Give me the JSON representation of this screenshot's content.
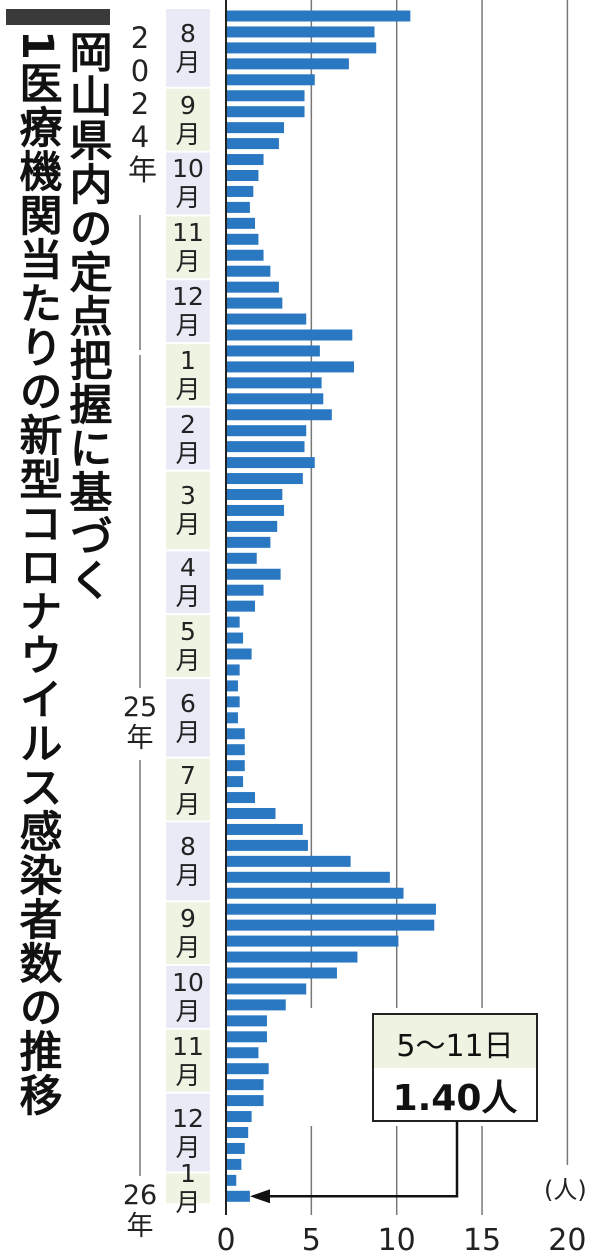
{
  "title_lines": [
    "岡山県内の定点把握に基づく",
    "1医療機関当たりの新型コロナウイルス感染者数の推移"
  ],
  "chart_data": {
    "type": "bar",
    "orientation": "horizontal",
    "title": "岡山県内の定点把握に基づく1医療機関当たりの新型コロナウイルス感染者数の推移",
    "xlabel": "",
    "unit_label": "(人)",
    "xlim": [
      0,
      20
    ],
    "xticks": [
      "0",
      "5",
      "10",
      "15",
      "20"
    ],
    "grid": true,
    "bar_color": "#2a78c2",
    "years": [
      {
        "label": "2024年",
        "month_index": 0
      },
      {
        "label": "25年",
        "month_index": 5
      },
      {
        "label": "26年",
        "month_index": 17
      }
    ],
    "months": [
      {
        "label": "8月",
        "weeks": 5
      },
      {
        "label": "9月",
        "weeks": 4
      },
      {
        "label": "10月",
        "weeks": 4
      },
      {
        "label": "11月",
        "weeks": 4
      },
      {
        "label": "12月",
        "weeks": 4
      },
      {
        "label": "1月",
        "weeks": 4
      },
      {
        "label": "2月",
        "weeks": 4
      },
      {
        "label": "3月",
        "weeks": 5
      },
      {
        "label": "4月",
        "weeks": 4
      },
      {
        "label": "5月",
        "weeks": 4
      },
      {
        "label": "6月",
        "weeks": 5
      },
      {
        "label": "7月",
        "weeks": 4
      },
      {
        "label": "8月",
        "weeks": 5
      },
      {
        "label": "9月",
        "weeks": 4
      },
      {
        "label": "10月",
        "weeks": 4
      },
      {
        "label": "11月",
        "weeks": 4
      },
      {
        "label": "12月",
        "weeks": 5
      },
      {
        "label": "1月",
        "weeks": 2
      }
    ],
    "values": [
      10.8,
      8.7,
      8.8,
      7.2,
      5.2,
      4.6,
      4.6,
      3.4,
      3.1,
      2.2,
      1.9,
      1.6,
      1.4,
      1.7,
      1.9,
      2.2,
      2.6,
      3.1,
      3.3,
      4.7,
      7.4,
      5.5,
      7.5,
      5.6,
      5.7,
      6.2,
      4.7,
      4.6,
      5.2,
      4.5,
      3.3,
      3.4,
      3.0,
      2.6,
      1.8,
      3.2,
      2.2,
      1.7,
      0.8,
      1.0,
      1.5,
      0.8,
      0.7,
      0.8,
      0.7,
      1.1,
      1.1,
      1.1,
      1.0,
      1.7,
      2.9,
      4.5,
      4.8,
      7.3,
      9.6,
      10.4,
      12.3,
      12.2,
      10.1,
      7.7,
      6.5,
      4.7,
      3.5,
      2.4,
      2.4,
      1.9,
      2.5,
      2.2,
      2.2,
      1.5,
      1.3,
      1.1,
      0.9,
      0.6,
      1.4
    ],
    "annotation": {
      "period": "5〜11日",
      "value": "1.40人",
      "target_index": 74
    }
  }
}
